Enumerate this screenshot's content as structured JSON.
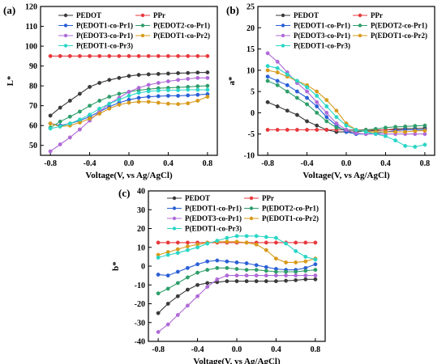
{
  "chart_data": [
    {
      "type": "line",
      "panel": "(a)",
      "xlabel": "Voltage(V, vs Ag/AgCl)",
      "ylabel": "L*",
      "xlim": [
        -0.9,
        0.9
      ],
      "ylim": [
        45,
        120
      ],
      "xticks": [
        -0.8,
        -0.4,
        0.0,
        0.4,
        0.8
      ],
      "xtick_labels": [
        "-0.8",
        "-0.4",
        "0.0",
        "0.4",
        "0.8"
      ],
      "yticks": [
        50,
        60,
        70,
        80,
        90,
        100,
        110,
        120
      ],
      "ytick_labels": [
        "50",
        "60",
        "70",
        "80",
        "90",
        "100",
        "110",
        "120"
      ],
      "x": [
        -0.8,
        -0.7,
        -0.6,
        -0.5,
        -0.4,
        -0.3,
        -0.2,
        -0.1,
        0.0,
        0.1,
        0.2,
        0.3,
        0.4,
        0.5,
        0.6,
        0.7,
        0.8
      ],
      "series": [
        {
          "name": "PEDOT",
          "color": "#3a3a3a",
          "values": [
            65,
            69,
            72.5,
            76,
            79.5,
            81.5,
            83,
            84,
            85,
            85.5,
            85.8,
            86,
            86.2,
            86.4,
            86.5,
            86.7,
            86.8
          ]
        },
        {
          "name": "PPr",
          "color": "#e8383d",
          "values": [
            95,
            95,
            95,
            95,
            95,
            95,
            95,
            95,
            95,
            95,
            95,
            95,
            95,
            95,
            95,
            95,
            95
          ]
        },
        {
          "name": "P(EDOT1-co-Pr1)",
          "color": "#2a5fd6",
          "values": [
            61,
            60,
            61,
            62.5,
            64.5,
            67,
            69.5,
            71.5,
            73,
            74,
            74.5,
            74.8,
            75,
            75,
            75.2,
            75.5,
            75.8
          ]
        },
        {
          "name": "P(EDOT2-co-Pr1)",
          "color": "#2e9e6a",
          "values": [
            59,
            62,
            64.5,
            67,
            70,
            72.5,
            74.5,
            76,
            77,
            77.8,
            78.3,
            78.8,
            79,
            79.2,
            79.5,
            79.8,
            80
          ]
        },
        {
          "name": "P(EDOT3-co-Pr1)",
          "color": "#b06ad8",
          "values": [
            47,
            50.5,
            54,
            58,
            62.5,
            67,
            71,
            74,
            77,
            79,
            80.5,
            81.5,
            82.3,
            83,
            83.5,
            84,
            84
          ]
        },
        {
          "name": "P(EDOT1-co-Pr2)",
          "color": "#d89a1a",
          "values": [
            61,
            59.5,
            60,
            61.5,
            63.5,
            66,
            68.5,
            70.5,
            71.5,
            72,
            72,
            71.5,
            71,
            70.8,
            71.2,
            72.5,
            74.5
          ]
        },
        {
          "name": "P(EDOT1-co-Pr3)",
          "color": "#2ad6c6",
          "values": [
            58.5,
            59.5,
            61,
            63,
            65.5,
            68.5,
            71,
            73,
            75,
            76.5,
            77.2,
            77.6,
            77.8,
            77.8,
            78,
            78,
            78
          ]
        }
      ],
      "legend_placement": "top"
    },
    {
      "type": "line",
      "panel": "(b)",
      "xlabel": "Voltage(V, vs Ag/AgCl)",
      "ylabel": "a*",
      "xlim": [
        -0.9,
        0.9
      ],
      "ylim": [
        -10,
        25
      ],
      "xticks": [
        -0.8,
        -0.4,
        0.0,
        0.4,
        0.8
      ],
      "xtick_labels": [
        "-0.8",
        "-0.4",
        "0.0",
        "0.4",
        "0.8"
      ],
      "yticks": [
        -10,
        -5,
        0,
        5,
        10,
        15,
        20,
        25
      ],
      "ytick_labels": [
        "-10",
        "-5",
        "0",
        "5",
        "10",
        "15",
        "20",
        "25"
      ],
      "x": [
        -0.8,
        -0.7,
        -0.6,
        -0.5,
        -0.4,
        -0.3,
        -0.2,
        -0.1,
        0.0,
        0.1,
        0.2,
        0.3,
        0.4,
        0.5,
        0.6,
        0.7,
        0.8
      ],
      "series": [
        {
          "name": "PEDOT",
          "color": "#3a3a3a",
          "values": [
            2.5,
            1.5,
            0.5,
            -0.5,
            -2,
            -3,
            -4,
            -4.5,
            -4.5,
            -4.5,
            -4.3,
            -4.2,
            -4,
            -3.8,
            -3.7,
            -3.7,
            -3.6
          ]
        },
        {
          "name": "PPr",
          "color": "#e8383d",
          "values": [
            -4,
            -4,
            -4,
            -4,
            -4,
            -4,
            -4,
            -4,
            -4,
            -4,
            -4,
            -4,
            -4,
            -4,
            -4,
            -4,
            -4
          ]
        },
        {
          "name": "P(EDOT1-co-Pr1)",
          "color": "#2a5fd6",
          "values": [
            8.5,
            7.5,
            6.5,
            5,
            3.5,
            1.5,
            -1,
            -3,
            -4.5,
            -5,
            -5,
            -4.8,
            -4.5,
            -4.2,
            -4,
            -4,
            -4
          ]
        },
        {
          "name": "P(EDOT2-co-Pr1)",
          "color": "#2e9e6a",
          "values": [
            7.5,
            6.5,
            5,
            3.5,
            2,
            0,
            -2,
            -3.5,
            -4,
            -4.2,
            -4,
            -3.8,
            -3.5,
            -3.3,
            -3.2,
            -3.1,
            -3
          ]
        },
        {
          "name": "P(EDOT3-co-Pr1)",
          "color": "#b06ad8",
          "values": [
            14,
            12,
            9.5,
            7,
            5,
            2.5,
            0,
            -2.5,
            -4,
            -4.8,
            -5,
            -5,
            -5,
            -5,
            -5,
            -5,
            -5
          ]
        },
        {
          "name": "P(EDOT1-co-Pr2)",
          "color": "#d89a1a",
          "values": [
            10,
            9.5,
            8.5,
            7.5,
            6.5,
            5,
            3,
            0.5,
            -2.5,
            -4,
            -4.5,
            -4.5,
            -4.5,
            -4.5,
            -4.5,
            -4.3,
            -4.2
          ]
        },
        {
          "name": "P(EDOT1-co-Pr3)",
          "color": "#2ad6c6",
          "values": [
            11,
            10.5,
            9,
            7.5,
            6,
            4,
            1.5,
            -1,
            -3,
            -4,
            -4.5,
            -5,
            -5.5,
            -6.5,
            -7.8,
            -8,
            -7.5
          ]
        }
      ],
      "legend_placement": "top"
    },
    {
      "type": "line",
      "panel": "(c)",
      "xlabel": "Voltage(V, vs Ag/AgCl)",
      "ylabel": "b*",
      "xlim": [
        -0.9,
        0.9
      ],
      "ylim": [
        -40,
        40
      ],
      "xticks": [
        -0.8,
        -0.4,
        0.0,
        0.4,
        0.8
      ],
      "xtick_labels": [
        "-0.8",
        "-0.4",
        "0.0",
        "0.4",
        "0.8"
      ],
      "yticks": [
        -40,
        -30,
        -20,
        -10,
        0,
        10,
        20,
        30,
        40
      ],
      "ytick_labels": [
        "-40",
        "-30",
        "-20",
        "-10",
        "0",
        "10",
        "20",
        "30",
        "40"
      ],
      "x": [
        -0.8,
        -0.7,
        -0.6,
        -0.5,
        -0.4,
        -0.3,
        -0.2,
        -0.1,
        0.0,
        0.1,
        0.2,
        0.3,
        0.4,
        0.5,
        0.6,
        0.7,
        0.8
      ],
      "series": [
        {
          "name": "PEDOT",
          "color": "#3a3a3a",
          "values": [
            -25,
            -20,
            -16,
            -12.5,
            -10,
            -9,
            -8.5,
            -8,
            -8,
            -8,
            -8,
            -8,
            -8,
            -7.8,
            -7.5,
            -7,
            -7
          ]
        },
        {
          "name": "PPr",
          "color": "#e8383d",
          "values": [
            12.5,
            12.5,
            12.5,
            12.5,
            12.5,
            12.5,
            12.5,
            12.5,
            12.5,
            12.5,
            12.5,
            12.5,
            12.5,
            12.5,
            12.5,
            12.5,
            12.5
          ]
        },
        {
          "name": "P(EDOT1-co-Pr1)",
          "color": "#2a5fd6",
          "values": [
            -4.5,
            -5,
            -3,
            -1,
            1,
            2.5,
            3,
            2.5,
            2,
            1.5,
            0.5,
            -0.5,
            -1.5,
            -2,
            -2,
            -1,
            1
          ]
        },
        {
          "name": "P(EDOT2-co-Pr1)",
          "color": "#2e9e6a",
          "values": [
            -14.5,
            -12,
            -9,
            -6,
            -3.5,
            -2,
            -1,
            -1,
            -1.5,
            -2,
            -2,
            -2.5,
            -3,
            -3,
            -3,
            -2.5,
            -2
          ]
        },
        {
          "name": "P(EDOT3-co-Pr1)",
          "color": "#b06ad8",
          "values": [
            -35,
            -31,
            -26,
            -21,
            -16,
            -11,
            -7,
            -5,
            -5,
            -5,
            -5,
            -5,
            -5,
            -5,
            -5,
            -5,
            -5
          ]
        },
        {
          "name": "P(EDOT1-co-Pr2)",
          "color": "#d89a1a",
          "values": [
            6,
            7.5,
            9,
            10.5,
            11.5,
            12.5,
            13,
            13,
            13,
            12.5,
            11.5,
            8.5,
            4,
            2,
            2,
            2.5,
            4
          ]
        },
        {
          "name": "P(EDOT1-co-Pr3)",
          "color": "#2ad6c6",
          "values": [
            4.5,
            6,
            7,
            8.5,
            10,
            12,
            13.5,
            15,
            16,
            16,
            16,
            15.5,
            15,
            12,
            8,
            5,
            3.5
          ]
        }
      ],
      "legend_placement": "top"
    }
  ]
}
